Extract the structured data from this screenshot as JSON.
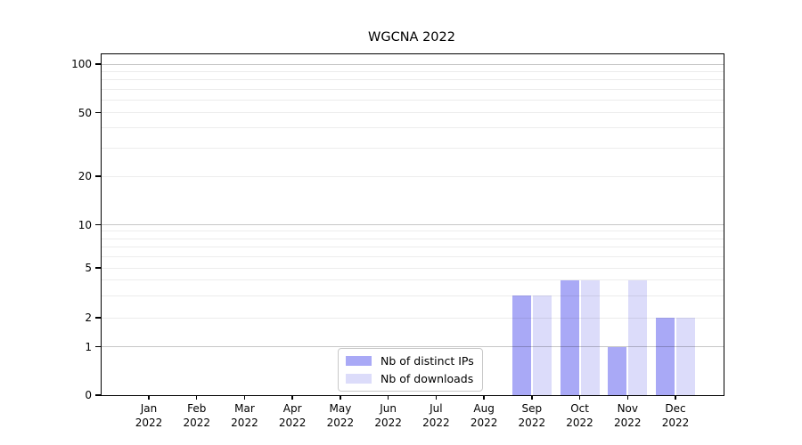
{
  "chart_data": {
    "type": "bar",
    "title": "WGCNA 2022",
    "categories": [
      {
        "month": "Jan",
        "year": "2022"
      },
      {
        "month": "Feb",
        "year": "2022"
      },
      {
        "month": "Mar",
        "year": "2022"
      },
      {
        "month": "Apr",
        "year": "2022"
      },
      {
        "month": "May",
        "year": "2022"
      },
      {
        "month": "Jun",
        "year": "2022"
      },
      {
        "month": "Jul",
        "year": "2022"
      },
      {
        "month": "Aug",
        "year": "2022"
      },
      {
        "month": "Sep",
        "year": "2022"
      },
      {
        "month": "Oct",
        "year": "2022"
      },
      {
        "month": "Nov",
        "year": "2022"
      },
      {
        "month": "Dec",
        "year": "2022"
      }
    ],
    "series": [
      {
        "name": "Nb of distinct IPs",
        "color": "#a9a9f6",
        "values": [
          0,
          0,
          0,
          0,
          0,
          0,
          0,
          0,
          3,
          4,
          1,
          2
        ]
      },
      {
        "name": "Nb of downloads",
        "color": "#dcdcfa",
        "values": [
          0,
          0,
          0,
          0,
          0,
          0,
          0,
          0,
          3,
          4,
          4,
          2
        ]
      }
    ],
    "y_axis": {
      "tick_labels": [
        0,
        1,
        2,
        5,
        10,
        20,
        50,
        100
      ],
      "scale": "symlog",
      "minor_gridlines": [
        3,
        4,
        6,
        7,
        8,
        9,
        30,
        40,
        60,
        70,
        80,
        90
      ],
      "decade_gridlines": [
        1,
        10,
        100
      ],
      "grid": true
    },
    "legend": {
      "position": "lower center",
      "entries": [
        "Nb of distinct IPs",
        "Nb of downloads"
      ]
    }
  }
}
